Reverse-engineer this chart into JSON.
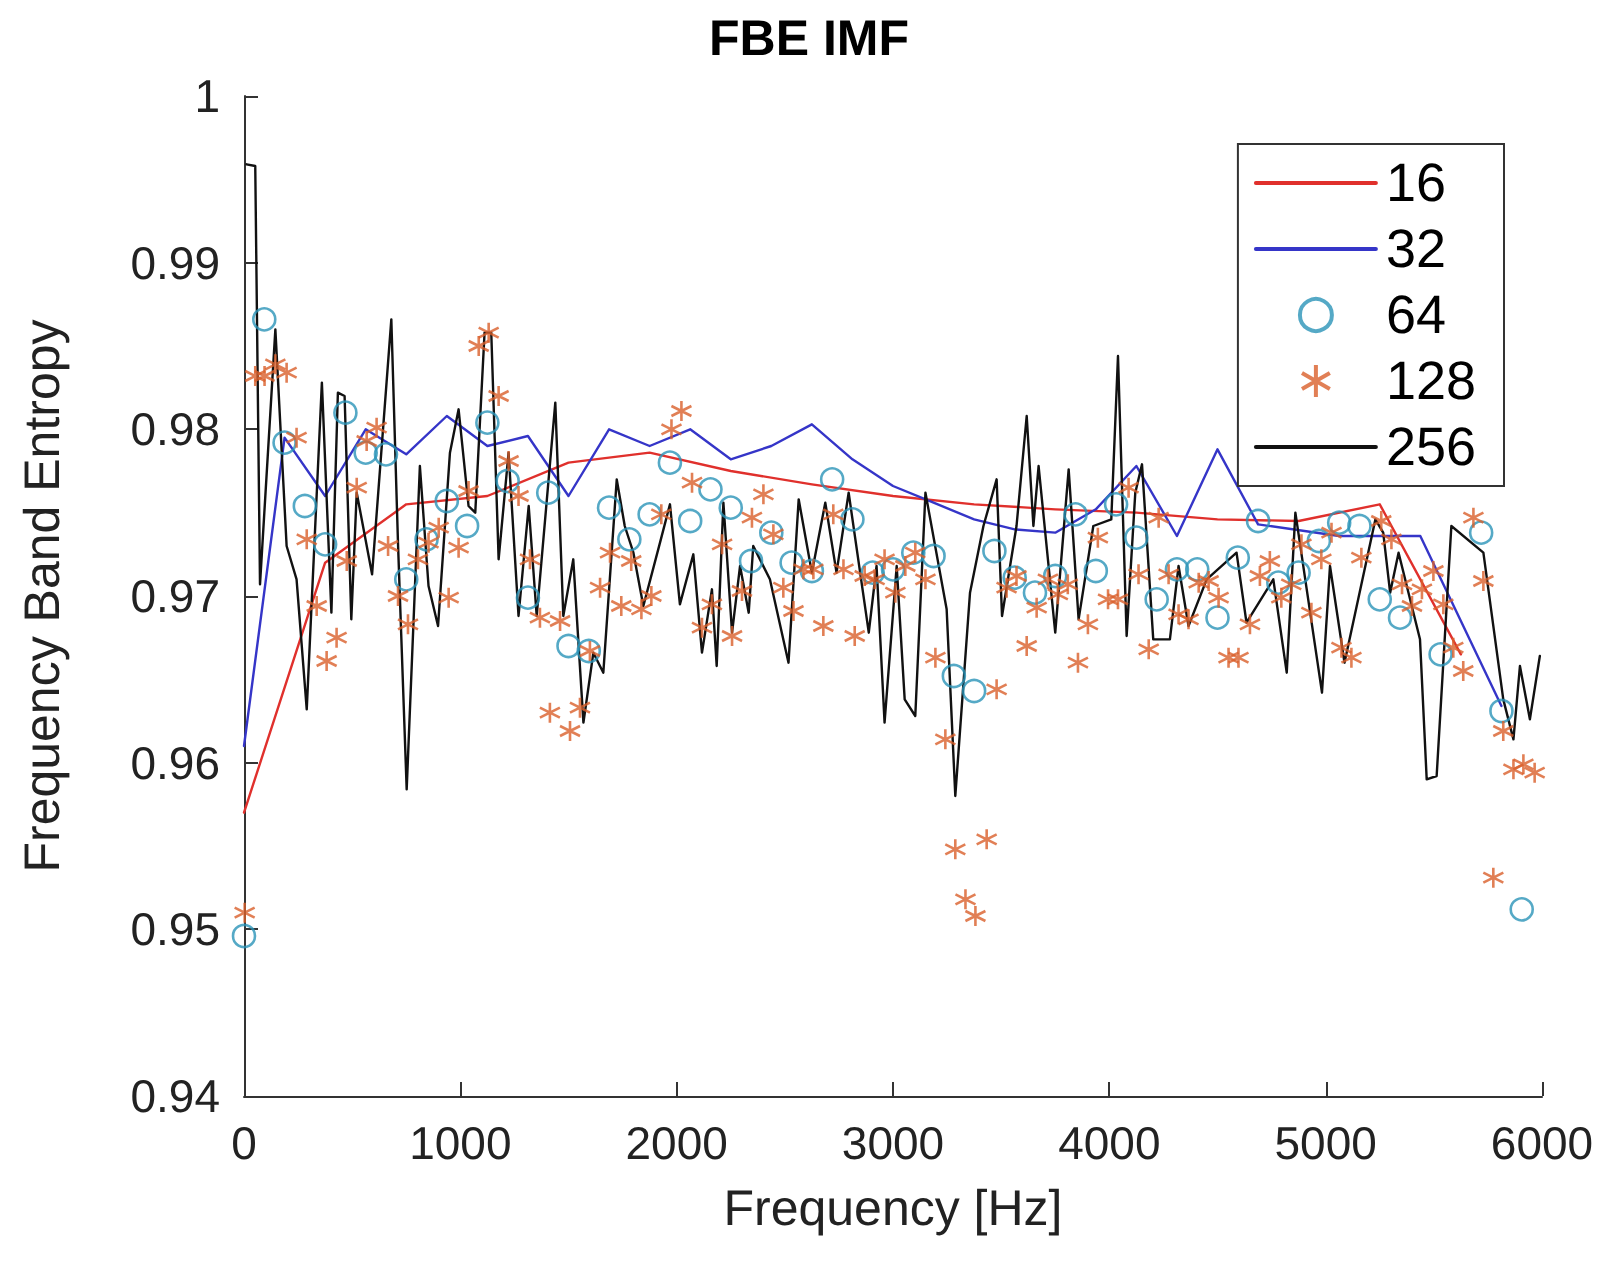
{
  "chart_data": {
    "type": "line",
    "title": "FBE IMF",
    "xlabel": "Frequency [Hz]",
    "ylabel": "Frequency Band Entropy",
    "xlim": [
      0,
      6000
    ],
    "xticks": [
      0,
      1000,
      2000,
      3000,
      4000,
      5000,
      6000
    ],
    "ylim": [
      0.94,
      1
    ],
    "yticks": [
      0.94,
      0.95,
      0.96,
      0.97,
      0.98,
      0.99,
      1
    ],
    "grid": false,
    "legend": "top right",
    "series": [
      {
        "name": "16",
        "color": "#e0302c",
        "marker": "none",
        "line_style": "solid",
        "x": [
          0,
          375,
          750,
          1125,
          1500,
          1875,
          2250,
          2625,
          3000,
          3375,
          3750,
          4125,
          4500,
          4875,
          5250,
          5625
        ],
        "values": [
          0.957,
          0.972,
          0.9755,
          0.976,
          0.978,
          0.9786,
          0.9775,
          0.9767,
          0.976,
          0.9755,
          0.9752,
          0.975,
          0.9746,
          0.9745,
          0.9755,
          0.9665
        ]
      },
      {
        "name": "32",
        "color": "#3535c8",
        "marker": "none",
        "line_style": "solid",
        "x": [
          0,
          187.5,
          375,
          562.5,
          750,
          937.5,
          1125,
          1312.5,
          1500,
          1687.5,
          1875,
          2062.5,
          2250,
          2437.5,
          2625,
          2812.5,
          3000,
          3187.5,
          3375,
          3562.5,
          3750,
          3937.5,
          4125,
          4312.5,
          4500,
          4687.5,
          4875,
          5062.5,
          5250,
          5437.5,
          5625,
          5812.5
        ],
        "values": [
          0.961,
          0.9795,
          0.976,
          0.98,
          0.9785,
          0.9808,
          0.979,
          0.9796,
          0.976,
          0.98,
          0.979,
          0.98,
          0.9782,
          0.979,
          0.9803,
          0.9782,
          0.9766,
          0.9756,
          0.9746,
          0.974,
          0.9738,
          0.9752,
          0.9778,
          0.9736,
          0.9788,
          0.9743,
          null,
          0.9736,
          null,
          0.9736,
          null,
          0.9634
        ]
      },
      {
        "name": "64",
        "type": "scatter",
        "color": "#2b94b8",
        "marker": "circle",
        "x": [
          0,
          93.75,
          187.5,
          281.25,
          375,
          468.75,
          562.5,
          656.25,
          750,
          843.75,
          937.5,
          1031.25,
          1125,
          1218.75,
          1312.5,
          1406.25,
          1500,
          1593.75,
          1687.5,
          1781.25,
          1875,
          1968.75,
          2062.5,
          2156.25,
          2250,
          2343.75,
          2437.5,
          2531.25,
          2625,
          2718.75,
          2812.5,
          2906.25,
          3000,
          3093.75,
          3187.5,
          3281.25,
          3375,
          3468.75,
          3562.5,
          3656.25,
          3750,
          3843.75,
          3937.5,
          4031.25,
          4125,
          4218.75,
          4312.5,
          4406.25,
          4500,
          4593.75,
          4687.5,
          4781.25,
          4875,
          4968.75,
          5062.5,
          5156.25,
          5250,
          5343.75,
          5437.5,
          5531.25,
          5625,
          5718.75,
          5812.5,
          5906.25
        ],
        "values": [
          0.9496,
          0.9866,
          0.9792,
          0.9754,
          0.9731,
          0.981,
          0.9786,
          0.9785,
          0.971,
          0.9734,
          0.9757,
          0.9742,
          0.9804,
          0.9769,
          0.9699,
          0.9762,
          0.967,
          0.9667,
          0.9753,
          0.9734,
          0.9749,
          0.978,
          0.9745,
          0.9764,
          0.9753,
          0.9721,
          0.9738,
          0.972,
          0.9715,
          0.977,
          0.9746,
          0.9714,
          0.9716,
          0.9726,
          0.9724,
          0.9652,
          0.9643,
          0.9727,
          0.9711,
          0.9702,
          0.9712,
          0.9749,
          0.9715,
          0.9755,
          0.9735,
          0.9698,
          0.9716,
          0.9716,
          0.9687,
          0.9723,
          0.9745,
          0.9708,
          0.9714,
          0.9733,
          0.9744,
          0.9742,
          0.9698,
          0.9687,
          null,
          0.9665,
          null,
          0.9738,
          0.9631,
          0.9512
        ]
      },
      {
        "name": "128",
        "type": "scatter",
        "color": "#d95f2a",
        "marker": "cross",
        "x": [
          3,
          52,
          95,
          145,
          197,
          243,
          290,
          336,
          382,
          428,
          475,
          521,
          567,
          613,
          666,
          712,
          758,
          804,
          853,
          900,
          946,
          992,
          1038,
          1085,
          1131,
          1177,
          1223,
          1269,
          1322,
          1368,
          1414,
          1461,
          1507,
          1553,
          1599,
          1646,
          1692,
          1744,
          1790,
          1837,
          1883,
          1929,
          1976,
          2022,
          2071,
          2117,
          2163,
          2210,
          2256,
          2302,
          2348,
          2401,
          2447,
          2493,
          2540,
          2586,
          2632,
          2678,
          2724,
          2771,
          2823,
          2869,
          2915,
          2961,
          3011,
          3057,
          3103,
          3150,
          3196,
          3242,
          3288,
          3335,
          3381,
          3433,
          3479,
          3525,
          3571,
          3618,
          3664,
          3716,
          3762,
          3808,
          3855,
          3901,
          3947,
          3994,
          4040,
          4089,
          4135,
          4182,
          4228,
          4274,
          4320,
          4366,
          4413,
          4459,
          4505,
          4551,
          4597,
          4650,
          4696,
          4742,
          4795,
          4841,
          4888,
          4934,
          4980,
          5027,
          5073,
          5119,
          5165,
          5257,
          5304,
          5353,
          5399,
          5445,
          5498,
          5544,
          5590,
          5636,
          5683,
          5729,
          5775,
          5821,
          5868,
          5914,
          5966
        ],
        "values": [
          0.951,
          0.9832,
          0.9832,
          0.9839,
          0.9834,
          0.9795,
          0.9734,
          0.9694,
          0.9661,
          0.9675,
          0.9721,
          0.9765,
          0.9793,
          0.9801,
          0.973,
          0.97,
          0.9683,
          0.9722,
          0.9732,
          0.9741,
          0.9699,
          0.9729,
          0.9763,
          0.985,
          0.9858,
          0.982,
          0.9781,
          0.976,
          0.9722,
          0.9687,
          0.963,
          0.9685,
          0.9619,
          0.9633,
          0.9667,
          0.9705,
          0.9726,
          0.9694,
          0.9721,
          0.9692,
          0.97,
          0.9749,
          0.98,
          0.9811,
          0.9768,
          0.9681,
          0.9695,
          0.9731,
          0.9676,
          0.9703,
          0.9747,
          0.9761,
          0.9737,
          0.9705,
          0.9691,
          0.9716,
          0.9716,
          0.9682,
          0.9749,
          0.9716,
          0.9676,
          0.9712,
          0.971,
          0.9722,
          0.9702,
          0.9718,
          0.9726,
          0.971,
          0.9663,
          0.9614,
          0.9548,
          0.9518,
          0.9508,
          0.9554,
          0.9644,
          0.9705,
          0.9712,
          0.967,
          0.9693,
          0.971,
          0.9701,
          0.9707,
          0.966,
          0.9683,
          0.9735,
          0.9698,
          0.9698,
          0.9765,
          0.9713,
          0.9668,
          0.9747,
          0.9713,
          0.9689,
          0.9686,
          0.9708,
          0.9709,
          0.9699,
          0.9663,
          0.9663,
          0.9683,
          0.9712,
          0.9721,
          0.9699,
          0.9707,
          0.9731,
          0.969,
          0.9722,
          0.9738,
          0.9669,
          0.9663,
          0.9723,
          0.9745,
          0.9734,
          0.9707,
          0.9694,
          0.9704,
          0.9715,
          0.9695,
          0.9669,
          0.9655,
          0.9747,
          0.9709,
          0.9531,
          0.9619,
          0.9596,
          0.9599,
          0.9594
        ]
      },
      {
        "name": "256",
        "color": "#111111",
        "marker": "none",
        "line_style": "solid",
        "x": [
          12,
          52,
          74,
          145,
          197,
          243,
          290,
          360,
          404,
          434,
          465,
          496,
          521,
          592,
          681,
          712,
          752,
          813,
          853,
          897,
          952,
          992,
          1038,
          1069,
          1112,
          1143,
          1177,
          1223,
          1269,
          1316,
          1353,
          1439,
          1476,
          1522,
          1569,
          1615,
          1661,
          1723,
          1760,
          1800,
          1846,
          1923,
          1969,
          2015,
          2077,
          2117,
          2163,
          2185,
          2216,
          2256,
          2293,
          2333,
          2354,
          2431,
          2517,
          2564,
          2625,
          2687,
          2739,
          2795,
          2888,
          2924,
          2961,
          3017,
          3054,
          3103,
          3150,
          3248,
          3288,
          3356,
          3418,
          3479,
          3504,
          3571,
          3618,
          3649,
          3673,
          3750,
          3812,
          3858,
          3926,
          4009,
          4040,
          4080,
          4120,
          4151,
          4203,
          4280,
          4320,
          4366,
          4450,
          4588,
          4634,
          4758,
          4820,
          4860,
          4983,
          5020,
          5087,
          5230,
          5266,
          5298,
          5337,
          5436,
          5467,
          5513,
          5581,
          5729,
          5821,
          5868,
          5898,
          5944,
          5990
        ],
        "values": [
          0.9959,
          0.9958,
          0.9707,
          0.986,
          0.973,
          0.971,
          0.9632,
          0.9828,
          0.969,
          0.9822,
          0.982,
          0.9686,
          0.9762,
          0.9713,
          0.9866,
          0.9731,
          0.9584,
          0.9778,
          0.9706,
          0.9682,
          0.9786,
          0.9812,
          0.9754,
          0.975,
          0.9858,
          0.9858,
          0.9722,
          0.9786,
          0.9688,
          0.9754,
          0.9688,
          0.9816,
          0.9688,
          0.9722,
          0.9624,
          0.9666,
          0.9654,
          0.977,
          0.9742,
          0.9726,
          0.9694,
          0.9732,
          0.9755,
          0.9695,
          0.9725,
          0.9666,
          0.9704,
          0.9658,
          0.9756,
          0.9678,
          0.9718,
          0.969,
          0.973,
          0.971,
          0.966,
          0.9758,
          0.9714,
          0.9756,
          0.9714,
          0.9762,
          0.9678,
          0.9718,
          0.9624,
          0.9718,
          0.9638,
          0.9628,
          0.9762,
          0.9692,
          0.958,
          0.9702,
          0.9742,
          0.977,
          0.9688,
          0.9742,
          0.9808,
          0.9742,
          0.9778,
          0.9678,
          0.9776,
          0.9686,
          0.9742,
          0.9746,
          0.9844,
          0.9676,
          0.9762,
          0.9779,
          0.9674,
          0.9674,
          0.9718,
          0.9682,
          0.971,
          0.9726,
          0.9684,
          0.971,
          0.9654,
          0.975,
          0.9642,
          0.9718,
          0.966,
          0.9746,
          0.9738,
          0.9702,
          0.9726,
          0.9674,
          0.959,
          0.9592,
          0.9742,
          0.9726,
          0.9638,
          0.9614,
          0.9658,
          0.9626,
          0.9664
        ]
      }
    ]
  }
}
